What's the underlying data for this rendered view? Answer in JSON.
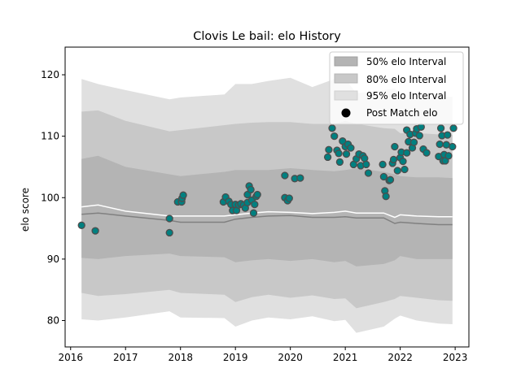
{
  "chart_data": {
    "type": "scatter",
    "title": "Clovis Le bail: elo History",
    "xlabel": "",
    "ylabel": "elo score",
    "xlim": [
      2015.9,
      2023.25
    ],
    "ylim": [
      75.7,
      124.5
    ],
    "x_ticks": [
      2016,
      2017,
      2018,
      2019,
      2020,
      2021,
      2022,
      2023
    ],
    "x_tick_labels": [
      "2016",
      "2017",
      "2018",
      "2019",
      "2020",
      "2021",
      "2022",
      "2023"
    ],
    "y_ticks": [
      80,
      90,
      100,
      110,
      120
    ],
    "y_tick_labels": [
      "80",
      "90",
      "100",
      "110",
      "120"
    ],
    "grid": false,
    "legend": {
      "placement": "top-right",
      "entries": [
        "50% elo Interval",
        "80% elo Interval",
        "95% elo Interval",
        "Post Match elo"
      ]
    },
    "colors": {
      "band95": "#e0e0e0",
      "band80": "#c8c8c8",
      "band50": "#b4b4b4",
      "median_line": "#808080",
      "mean_line": "#ffffff",
      "point_fill": "#008080",
      "point_edge": "#4d4d4d"
    },
    "bands": {
      "x": [
        2016.2,
        2016.5,
        2017.0,
        2017.8,
        2018.0,
        2018.8,
        2019.0,
        2019.3,
        2019.6,
        2020.0,
        2020.4,
        2020.8,
        2021.0,
        2021.2,
        2021.7,
        2021.9,
        2022.0,
        2022.3,
        2022.7,
        2022.95
      ],
      "lo95": [
        80.2,
        80.0,
        80.5,
        81.5,
        80.5,
        80.4,
        79.0,
        80.0,
        80.5,
        80.2,
        80.7,
        79.9,
        80.1,
        78.0,
        79.0,
        80.3,
        80.8,
        80.0,
        79.5,
        79.4
      ],
      "lo80": [
        84.5,
        84.0,
        84.3,
        85.0,
        84.5,
        84.2,
        83.0,
        83.8,
        84.2,
        83.7,
        84.1,
        83.5,
        83.6,
        82.0,
        83.0,
        83.5,
        84.0,
        83.7,
        83.3,
        83.2
      ],
      "lo50": [
        90.2,
        90.0,
        90.5,
        90.9,
        90.5,
        90.3,
        89.5,
        89.8,
        90.0,
        89.7,
        90.0,
        89.5,
        89.7,
        88.8,
        89.2,
        89.8,
        90.5,
        90.0,
        90.0,
        90.0
      ],
      "hi50": [
        106.3,
        106.8,
        105.0,
        103.8,
        103.5,
        104.2,
        104.5,
        104.5,
        104.5,
        104.8,
        104.5,
        104.3,
        104.5,
        104.8,
        104.2,
        103.8,
        103.5,
        103.3,
        103.3,
        103.2
      ],
      "hi80": [
        114.0,
        114.2,
        112.5,
        110.8,
        111.0,
        111.8,
        112.0,
        112.2,
        112.3,
        112.3,
        112.0,
        112.0,
        112.5,
        112.0,
        111.3,
        111.2,
        110.5,
        110.5,
        110.3,
        110.2
      ],
      "hi95": [
        119.3,
        118.5,
        117.5,
        116.0,
        116.3,
        116.8,
        118.5,
        118.5,
        119.0,
        119.5,
        118.0,
        119.3,
        119.3,
        117.0,
        117.5,
        117.8,
        116.5,
        116.0,
        116.5,
        116.4
      ],
      "median": [
        97.3,
        97.5,
        97.0,
        96.3,
        96.0,
        96.0,
        96.5,
        96.8,
        97.0,
        97.1,
        96.8,
        96.8,
        96.9,
        96.7,
        96.7,
        95.8,
        96.0,
        95.8,
        95.6,
        95.6
      ],
      "mean": [
        98.5,
        98.8,
        97.8,
        97.0,
        97.0,
        97.0,
        97.2,
        97.5,
        97.7,
        97.6,
        97.4,
        97.6,
        97.8,
        97.5,
        97.5,
        96.8,
        97.2,
        97.0,
        96.9,
        96.9
      ]
    },
    "series": [
      {
        "name": "Post Match elo",
        "points": [
          [
            2016.2,
            95.5
          ],
          [
            2016.45,
            94.6
          ],
          [
            2017.8,
            94.3
          ],
          [
            2017.8,
            96.6
          ],
          [
            2017.95,
            99.3
          ],
          [
            2018.02,
            99.3
          ],
          [
            2018.03,
            99.9
          ],
          [
            2018.05,
            100.4
          ],
          [
            2018.78,
            99.3
          ],
          [
            2018.82,
            100.1
          ],
          [
            2018.88,
            99.4
          ],
          [
            2018.92,
            98.9
          ],
          [
            2018.95,
            97.9
          ],
          [
            2019.0,
            98.9
          ],
          [
            2019.02,
            97.9
          ],
          [
            2019.06,
            98.8
          ],
          [
            2019.1,
            99.0
          ],
          [
            2019.15,
            98.8
          ],
          [
            2019.18,
            98.3
          ],
          [
            2019.22,
            99.2
          ],
          [
            2019.22,
            100.5
          ],
          [
            2019.25,
            101.9
          ],
          [
            2019.28,
            101.3
          ],
          [
            2019.3,
            99.6
          ],
          [
            2019.33,
            97.5
          ],
          [
            2019.35,
            98.9
          ],
          [
            2019.38,
            100.2
          ],
          [
            2019.4,
            100.5
          ],
          [
            2019.9,
            103.6
          ],
          [
            2019.9,
            100.0
          ],
          [
            2019.95,
            99.5
          ],
          [
            2019.98,
            99.9
          ],
          [
            2020.08,
            103.1
          ],
          [
            2020.18,
            103.2
          ],
          [
            2020.68,
            106.6
          ],
          [
            2020.7,
            107.8
          ],
          [
            2020.76,
            111.3
          ],
          [
            2020.8,
            110.0
          ],
          [
            2020.85,
            107.7
          ],
          [
            2020.88,
            107.2
          ],
          [
            2020.9,
            105.8
          ],
          [
            2020.95,
            109.2
          ],
          [
            2021.0,
            108.3
          ],
          [
            2021.02,
            107.1
          ],
          [
            2021.05,
            108.7
          ],
          [
            2021.1,
            108.1
          ],
          [
            2021.15,
            105.4
          ],
          [
            2021.2,
            106.3
          ],
          [
            2021.25,
            107.1
          ],
          [
            2021.28,
            105.2
          ],
          [
            2021.32,
            106.8
          ],
          [
            2021.35,
            106.4
          ],
          [
            2021.38,
            105.4
          ],
          [
            2021.42,
            104.0
          ],
          [
            2021.68,
            105.4
          ],
          [
            2021.7,
            103.4
          ],
          [
            2021.72,
            101.1
          ],
          [
            2021.74,
            100.2
          ],
          [
            2021.8,
            102.8
          ],
          [
            2021.82,
            102.9
          ],
          [
            2021.86,
            105.6
          ],
          [
            2021.88,
            106.2
          ],
          [
            2021.9,
            108.3
          ],
          [
            2021.95,
            104.4
          ],
          [
            2022.0,
            106.5
          ],
          [
            2022.02,
            107.4
          ],
          [
            2022.05,
            105.9
          ],
          [
            2022.08,
            104.6
          ],
          [
            2022.12,
            107.3
          ],
          [
            2022.12,
            111.0
          ],
          [
            2022.15,
            109.1
          ],
          [
            2022.18,
            110.3
          ],
          [
            2022.22,
            108.1
          ],
          [
            2022.25,
            109.0
          ],
          [
            2022.28,
            110.5
          ],
          [
            2022.3,
            111.2
          ],
          [
            2022.35,
            110.1
          ],
          [
            2022.38,
            111.5
          ],
          [
            2022.42,
            107.9
          ],
          [
            2022.48,
            107.3
          ],
          [
            2022.7,
            106.7
          ],
          [
            2022.72,
            108.7
          ],
          [
            2022.74,
            111.3
          ],
          [
            2022.76,
            110.1
          ],
          [
            2022.78,
            106.0
          ],
          [
            2022.8,
            107.0
          ],
          [
            2022.82,
            106.0
          ],
          [
            2022.84,
            108.6
          ],
          [
            2022.86,
            110.2
          ],
          [
            2022.88,
            106.8
          ],
          [
            2022.95,
            108.3
          ],
          [
            2022.97,
            111.3
          ]
        ]
      }
    ]
  }
}
